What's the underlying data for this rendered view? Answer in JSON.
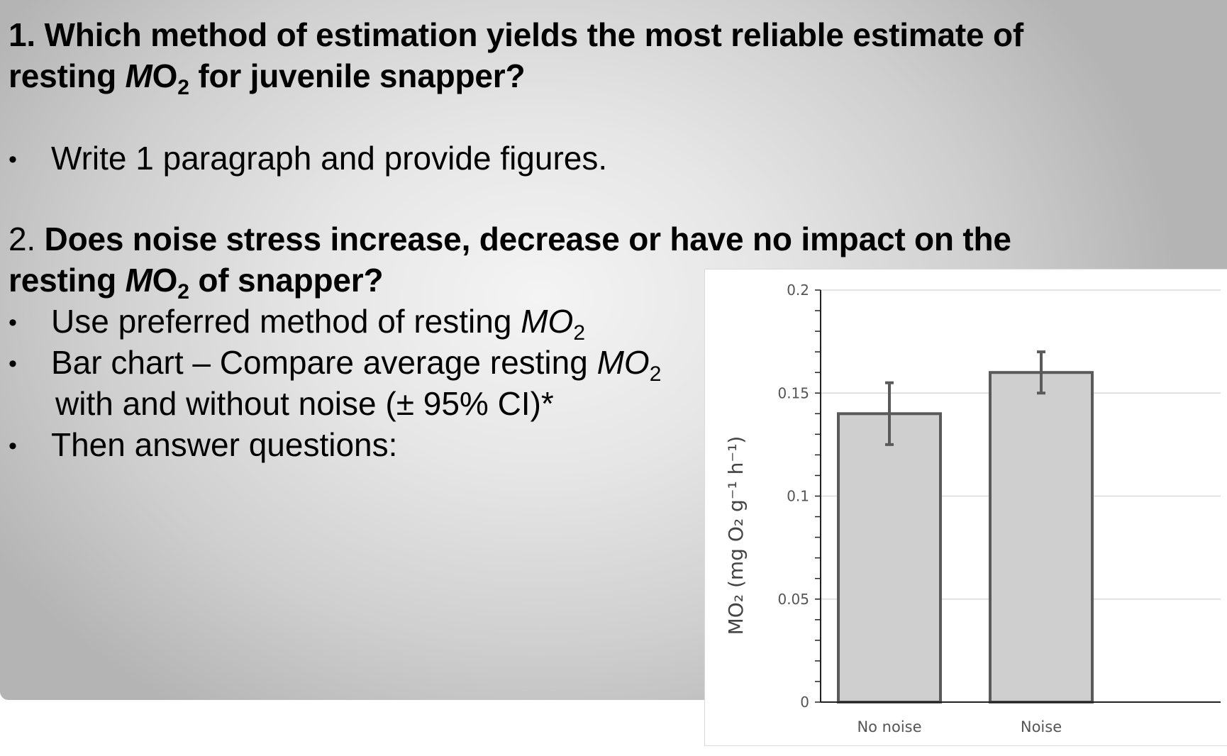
{
  "slide": {
    "q1": {
      "line1": "1. Which method of estimation yields the most reliable estimate of",
      "line2_pre": "resting ",
      "line2_M": "M",
      "line2_O": "O",
      "line2_sub": "2",
      "line2_post": " for juvenile snapper?",
      "bullet": "Write 1 paragraph and provide figures."
    },
    "q2": {
      "num": "2. ",
      "line1": "Does noise stress increase, decrease or have no impact on the",
      "line2_pre": "resting ",
      "line2_M": "M",
      "line2_O": "O",
      "line2_sub": "2",
      "line2_post": " of snapper?",
      "bullets": [
        {
          "pre": "Use preferred method of resting ",
          "M": "MO",
          "sub": "2"
        },
        {
          "pre": "Bar chart – Compare average resting ",
          "M": "MO",
          "sub": "2"
        },
        {
          "pre": "Then answer questions:"
        }
      ],
      "continuation": "with and without noise (± 95% CI)*",
      "bullet_glyph": "•"
    }
  },
  "chart_data": {
    "type": "bar",
    "title": "",
    "categories": [
      "No noise",
      "Noise"
    ],
    "values": [
      0.14,
      0.16
    ],
    "error_bars": {
      "lower": [
        0.125,
        0.15
      ],
      "upper": [
        0.155,
        0.17
      ]
    },
    "xlabel": "",
    "ylabel": "MO₂ (mg O₂ g⁻¹ h⁻¹)",
    "ylim": [
      0,
      0.2
    ],
    "yticks": [
      "0",
      "0.05",
      "0.1",
      "0.15",
      "0.2"
    ],
    "ytick_values": [
      0,
      0.05,
      0.1,
      0.15,
      0.2
    ],
    "minor_tick_step": 0.01,
    "grid": true,
    "legend": null,
    "bar_fill": "#d0cfd0",
    "bar_edge": "#5a5a5a"
  }
}
